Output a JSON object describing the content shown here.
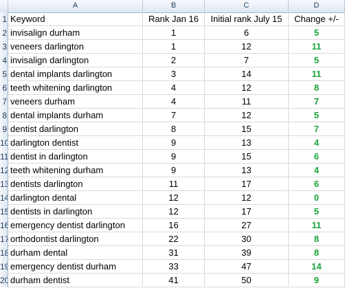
{
  "column_headers": [
    "A",
    "B",
    "C",
    "D"
  ],
  "header": {
    "row_number": "1",
    "keyword": "Keyword",
    "rank_jan": "Rank Jan 16",
    "initial_rank": "Initial rank July 15",
    "change": "Change +/-"
  },
  "rows": [
    {
      "num": "2",
      "keyword": "invisalign durham",
      "rank_jan": "1",
      "initial": "6",
      "change": "5"
    },
    {
      "num": "3",
      "keyword": "veneers darlington",
      "rank_jan": "1",
      "initial": "12",
      "change": "11"
    },
    {
      "num": "4",
      "keyword": "invisalign darlington",
      "rank_jan": "2",
      "initial": "7",
      "change": "5"
    },
    {
      "num": "5",
      "keyword": "dental implants darlington",
      "rank_jan": "3",
      "initial": "14",
      "change": "11"
    },
    {
      "num": "6",
      "keyword": "teeth whitening darlington",
      "rank_jan": "4",
      "initial": "12",
      "change": "8"
    },
    {
      "num": "7",
      "keyword": "veneers durham",
      "rank_jan": "4",
      "initial": "11",
      "change": "7"
    },
    {
      "num": "8",
      "keyword": "dental implants durham",
      "rank_jan": "7",
      "initial": "12",
      "change": "5"
    },
    {
      "num": "9",
      "keyword": "dentist darlington",
      "rank_jan": "8",
      "initial": "15",
      "change": "7"
    },
    {
      "num": "10",
      "keyword": "darlington dentist",
      "rank_jan": "9",
      "initial": "13",
      "change": "4"
    },
    {
      "num": "11",
      "keyword": "dentist in darlington",
      "rank_jan": "9",
      "initial": "15",
      "change": "6"
    },
    {
      "num": "12",
      "keyword": "teeth whitening durham",
      "rank_jan": "9",
      "initial": "13",
      "change": "4"
    },
    {
      "num": "13",
      "keyword": "dentists darlington",
      "rank_jan": "11",
      "initial": "17",
      "change": "6"
    },
    {
      "num": "14",
      "keyword": "darlington dental",
      "rank_jan": "12",
      "initial": "12",
      "change": "0"
    },
    {
      "num": "15",
      "keyword": "dentists in darlington",
      "rank_jan": "12",
      "initial": "17",
      "change": "5"
    },
    {
      "num": "16",
      "keyword": "emergency dentist darlington",
      "rank_jan": "16",
      "initial": "27",
      "change": "11"
    },
    {
      "num": "17",
      "keyword": "orthodontist darlington",
      "rank_jan": "22",
      "initial": "30",
      "change": "8"
    },
    {
      "num": "18",
      "keyword": "durham dental",
      "rank_jan": "31",
      "initial": "39",
      "change": "8"
    },
    {
      "num": "19",
      "keyword": "emergency dentist durham",
      "rank_jan": "33",
      "initial": "47",
      "change": "14"
    },
    {
      "num": "20",
      "keyword": "durham dentist",
      "rank_jan": "41",
      "initial": "50",
      "change": "9"
    }
  ],
  "colors": {
    "change_green": "#1aa33a",
    "header_blue": "#dfe7f2"
  }
}
